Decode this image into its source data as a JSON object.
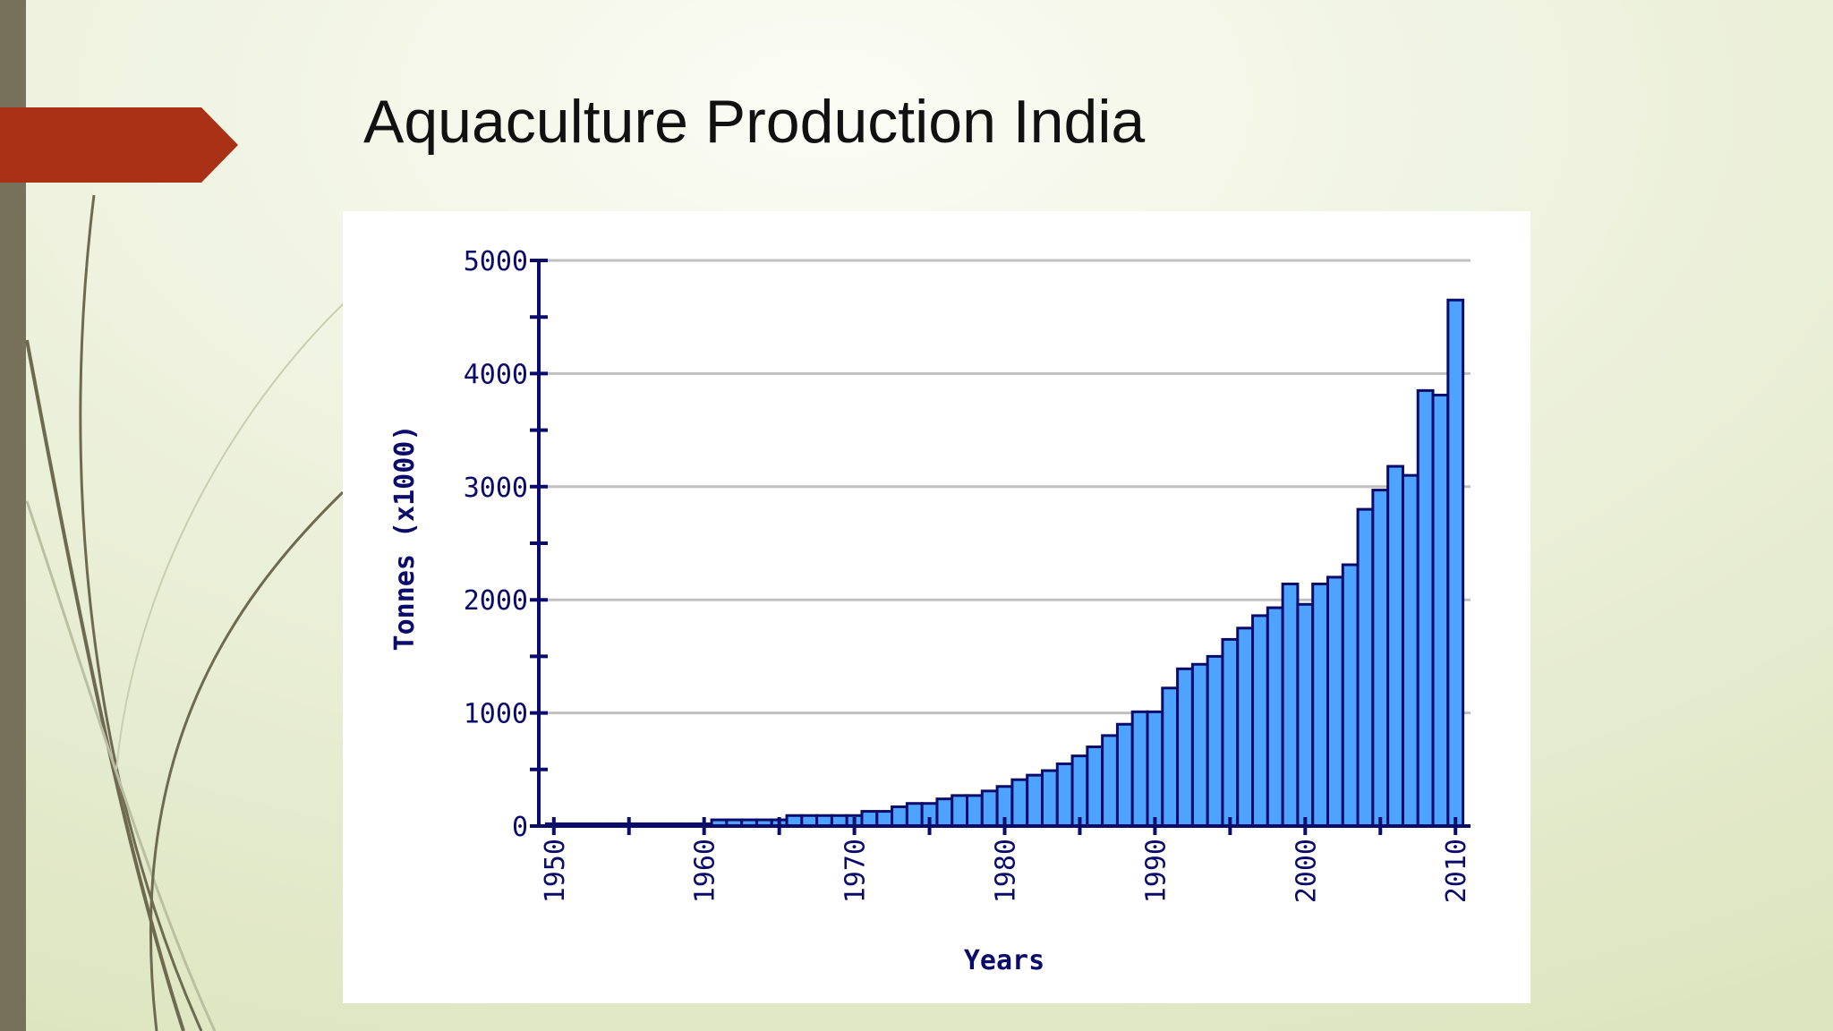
{
  "chart_data": {
    "type": "bar",
    "title": "Aquaculture Production India",
    "xlabel": "Years",
    "ylabel": "Tonnes (x1000)",
    "x": [
      1950,
      1951,
      1952,
      1953,
      1954,
      1955,
      1956,
      1957,
      1958,
      1959,
      1960,
      1961,
      1962,
      1963,
      1964,
      1965,
      1966,
      1967,
      1968,
      1969,
      1970,
      1971,
      1972,
      1973,
      1974,
      1975,
      1976,
      1977,
      1978,
      1979,
      1980,
      1981,
      1982,
      1983,
      1984,
      1985,
      1986,
      1987,
      1988,
      1989,
      1990,
      1991,
      1992,
      1993,
      1994,
      1995,
      1996,
      1997,
      1998,
      1999,
      2000,
      2001,
      2002,
      2003,
      2004,
      2005,
      2006,
      2007,
      2008,
      2009,
      2010
    ],
    "values": [
      20,
      20,
      20,
      20,
      20,
      20,
      20,
      20,
      20,
      20,
      20,
      55,
      55,
      55,
      55,
      55,
      93,
      93,
      93,
      93,
      93,
      130,
      130,
      170,
      200,
      200,
      240,
      270,
      270,
      310,
      350,
      410,
      450,
      490,
      550,
      620,
      700,
      800,
      900,
      1010,
      1010,
      1220,
      1390,
      1430,
      1500,
      1650,
      1750,
      1860,
      1930,
      2140,
      1960,
      2140,
      2200,
      2310,
      2800,
      2970,
      3180,
      3100,
      3850,
      3810,
      4650
    ],
    "color": "#4ea3ff",
    "edgecolor": "#0b0b6b",
    "xlim": [
      1949,
      2011
    ],
    "xticks": [
      1950,
      1960,
      1970,
      1980,
      1990,
      2000,
      2010
    ],
    "xminorticks": [
      1955,
      1965,
      1975,
      1985,
      1995,
      2005
    ],
    "ylim": [
      0,
      5000
    ],
    "yticks": [
      0,
      1000,
      2000,
      3000,
      4000,
      5000
    ],
    "yminorticks": [
      500,
      1500,
      2500,
      3500,
      4500
    ],
    "grid": true
  }
}
